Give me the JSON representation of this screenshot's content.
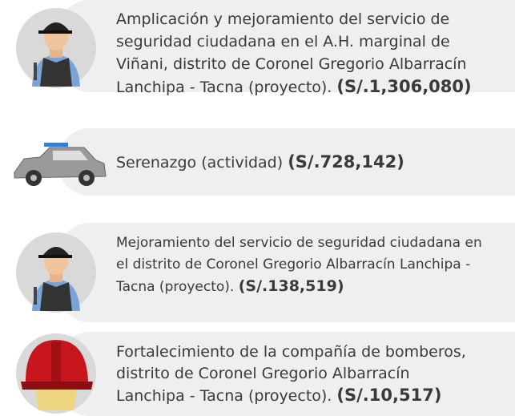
{
  "items": [
    {
      "lines": [
        "Amplicación y mejoramiento del servicio de",
        "seguridad ciudadana en el A.H. marginal de",
        "Viñani, distrito de Coronel Gregorio Albarracín",
        "Lanchipa - Tacna (proyecto)."
      ],
      "amount": "(S/.1,306,080)"
    },
    {
      "lines": [
        "Serenazgo (actividad)"
      ],
      "amount": "(S/.728,142)"
    },
    {
      "lines": [
        "Mejoramiento del servicio de seguridad ciudadana en",
        "el distrito de Coronel Gregorio Albarracín Lanchipa -",
        "Tacna (proyecto)."
      ],
      "amount": "(S/.138,519)"
    },
    {
      "lines": [
        "Fortalecimiento de la compañía de bomberos,",
        "distrito de Coronel Gregorio Albarracín",
        "Lanchipa - Tacna (proyecto)."
      ],
      "amount": "(S/.10,517)"
    }
  ]
}
